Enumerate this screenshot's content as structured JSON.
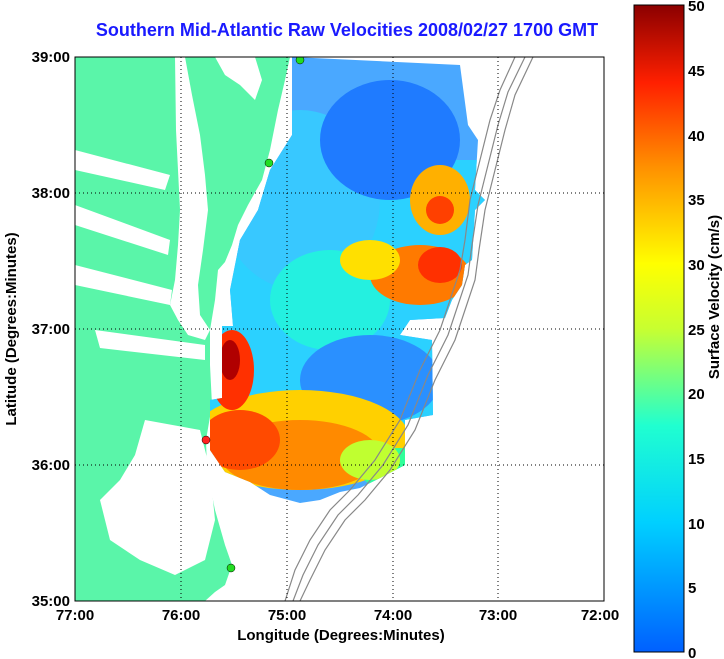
{
  "title": "Southern Mid-Atlantic Raw Velocities 2008/02/27 1700 GMT",
  "x_axis": {
    "label": "Longitude (Degrees:Minutes)",
    "ticks": [
      "77:00",
      "76:00",
      "75:00",
      "74:00",
      "73:00",
      "72:00"
    ]
  },
  "y_axis": {
    "label": "Latitude (Degrees:Minutes)",
    "ticks": [
      "39:00",
      "38:00",
      "37:00",
      "36:00",
      "35:00"
    ]
  },
  "colorbar": {
    "label": "Surface Velocity (cm/s)",
    "ticks": [
      "50",
      "45",
      "40",
      "35",
      "30",
      "25",
      "20",
      "15",
      "10",
      "5",
      "0"
    ],
    "min": 0,
    "max": 50,
    "colormap": "jet"
  },
  "colors": {
    "title": "#1a1aff",
    "land": "#5af5a9",
    "ocean": "#ffffff",
    "grid": "#000000"
  },
  "map": {
    "lon_range": [
      -77,
      -72
    ],
    "lat_range": [
      35,
      39
    ],
    "grid": "dotted",
    "stations": [
      "green",
      "green",
      "red",
      "green"
    ]
  }
}
